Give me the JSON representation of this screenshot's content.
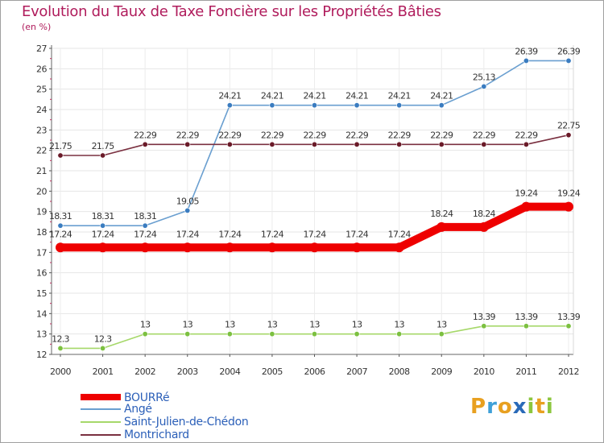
{
  "header": {
    "title": "Evolution du Taux de Taxe Foncière sur les Propriétés Bâties",
    "subtitle": "(en %)"
  },
  "logo": {
    "letters": [
      "P",
      "r",
      "o",
      "x",
      "i",
      "t",
      "i"
    ],
    "colors": [
      "#e8a020",
      "#3fa0d8",
      "#e8a020",
      "#2a6ab8",
      "#8cc63e",
      "#e8a020",
      "#8cc63e"
    ]
  },
  "chart_data": {
    "type": "line",
    "title": "Evolution du Taux de Taxe Foncière sur les Propriétés Bâties",
    "ylabel": "(en %)",
    "xlabel": "",
    "x": [
      "2000",
      "2001",
      "2002",
      "2003",
      "2004",
      "2005",
      "2006",
      "2007",
      "2008",
      "2009",
      "2010",
      "2011",
      "2012"
    ],
    "ylim": [
      12,
      27
    ],
    "yticks": [
      "12",
      "13",
      "14",
      "15",
      "16",
      "17",
      "18",
      "19",
      "20",
      "21",
      "22",
      "23",
      "24",
      "25",
      "26",
      "27"
    ],
    "grid": true,
    "legend_position": "bottom-left",
    "series": [
      {
        "name": "BOURRé",
        "color": "#ee0000",
        "marker_color": "#ee0000",
        "emphasis": "thick",
        "values": [
          17.24,
          17.24,
          17.24,
          17.24,
          17.24,
          17.24,
          17.24,
          17.24,
          17.24,
          18.24,
          18.24,
          19.24,
          19.24
        ],
        "labels": [
          "17.24",
          "17.24",
          "17.24",
          "17.24",
          "17.24",
          "17.24",
          "17.24",
          "17.24",
          "17.24",
          "18.24",
          "18.24",
          "19.24",
          "19.24"
        ]
      },
      {
        "name": "Angé",
        "color": "#6a9fd0",
        "marker_color": "#3a7cc0",
        "emphasis": "thin",
        "values": [
          18.31,
          18.31,
          18.31,
          19.05,
          24.21,
          24.21,
          24.21,
          24.21,
          24.21,
          24.21,
          25.13,
          26.39,
          26.39
        ],
        "labels": [
          "18.31",
          "18.31",
          "18.31",
          "19.05",
          "24.21",
          "24.21",
          "24.21",
          "24.21",
          "24.21",
          "24.21",
          "25.13",
          "26.39",
          "26.39"
        ]
      },
      {
        "name": "Saint-Julien-de-Chédon",
        "color": "#a6d86a",
        "marker_color": "#7cc040",
        "emphasis": "thin",
        "values": [
          12.3,
          12.3,
          13,
          13,
          13,
          13,
          13,
          13,
          13,
          13,
          13.39,
          13.39,
          13.39
        ],
        "labels": [
          "12.3",
          "12.3",
          "13",
          "13",
          "13",
          "13",
          "13",
          "13",
          "13",
          "13",
          "13.39",
          "13.39",
          "13.39"
        ]
      },
      {
        "name": "Montrichard",
        "color": "#7a3040",
        "marker_color": "#6a1a28",
        "emphasis": "thin",
        "values": [
          21.75,
          21.75,
          22.29,
          22.29,
          22.29,
          22.29,
          22.29,
          22.29,
          22.29,
          22.29,
          22.29,
          22.29,
          22.75
        ],
        "labels": [
          "21.75",
          "21.75",
          "22.29",
          "22.29",
          "22.29",
          "22.29",
          "22.29",
          "22.29",
          "22.29",
          "22.29",
          "22.29",
          "22.29",
          "22.75"
        ]
      }
    ]
  }
}
